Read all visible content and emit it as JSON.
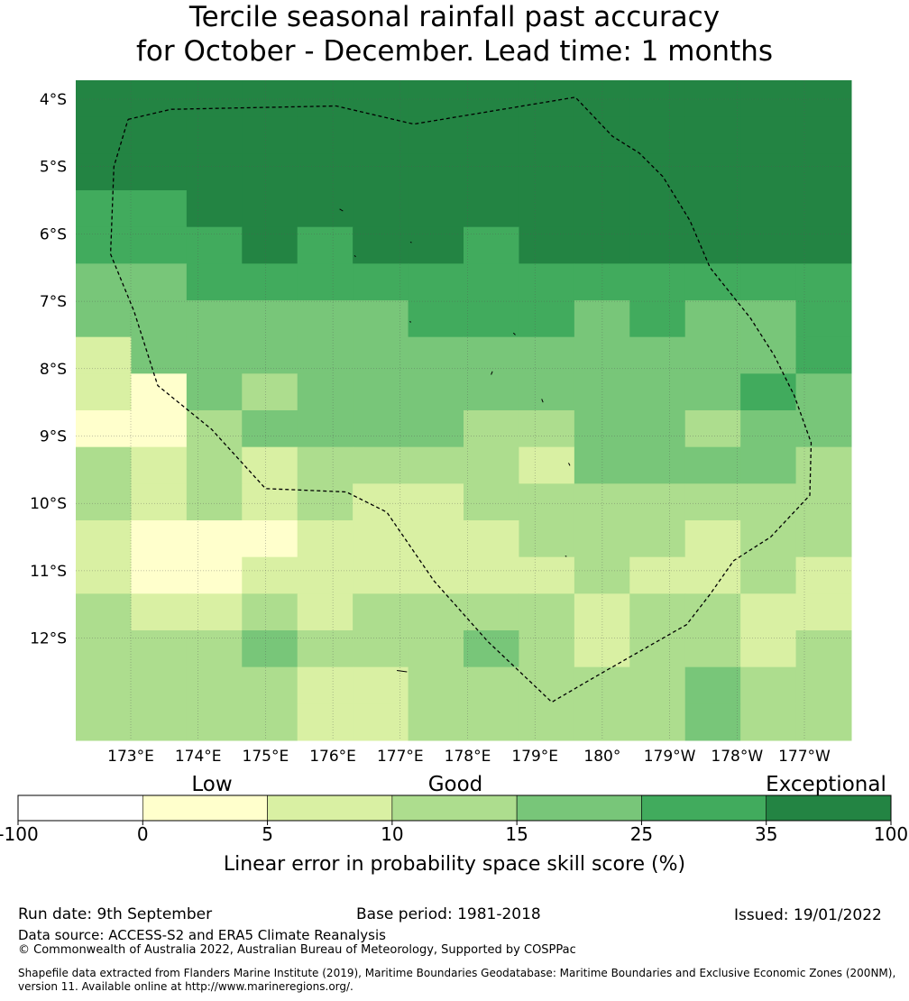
{
  "title": {
    "line1": "Tercile seasonal rainfall past accuracy",
    "line2": "for October - December. Lead time: 1 months"
  },
  "map": {
    "lat_labels": [
      "4°S",
      "5°S",
      "6°S",
      "7°S",
      "8°S",
      "9°S",
      "10°S",
      "11°S",
      "12°S"
    ],
    "lon_labels": [
      "173°E",
      "174°E",
      "175°E",
      "176°E",
      "177°E",
      "178°E",
      "179°E",
      "180°",
      "179°W",
      "178°W",
      "177°W"
    ],
    "grid": [
      [
        6,
        6,
        6,
        6,
        6,
        6,
        6,
        6,
        6,
        6,
        6,
        6,
        6,
        6
      ],
      [
        6,
        6,
        6,
        6,
        6,
        6,
        6,
        6,
        6,
        6,
        6,
        6,
        6,
        6
      ],
      [
        6,
        6,
        6,
        6,
        6,
        6,
        6,
        6,
        6,
        6,
        6,
        6,
        6,
        6
      ],
      [
        5,
        5,
        6,
        6,
        6,
        6,
        6,
        6,
        6,
        6,
        6,
        6,
        6,
        6
      ],
      [
        5,
        5,
        5,
        6,
        5,
        6,
        6,
        5,
        6,
        6,
        6,
        6,
        6,
        6
      ],
      [
        4,
        4,
        5,
        5,
        5,
        5,
        5,
        5,
        5,
        5,
        5,
        5,
        5,
        5
      ],
      [
        4,
        4,
        4,
        4,
        4,
        4,
        5,
        5,
        5,
        4,
        5,
        4,
        4,
        5
      ],
      [
        2,
        4,
        4,
        4,
        4,
        4,
        4,
        4,
        4,
        4,
        4,
        4,
        4,
        5
      ],
      [
        2,
        1,
        4,
        3,
        4,
        4,
        4,
        4,
        4,
        4,
        4,
        4,
        5,
        4
      ],
      [
        1,
        1,
        3,
        4,
        4,
        4,
        4,
        3,
        3,
        4,
        4,
        3,
        4,
        4
      ],
      [
        3,
        2,
        3,
        2,
        3,
        3,
        3,
        3,
        2,
        4,
        4,
        4,
        4,
        3
      ],
      [
        3,
        2,
        3,
        2,
        3,
        2,
        2,
        3,
        3,
        3,
        3,
        3,
        3,
        3
      ],
      [
        2,
        0,
        0,
        0,
        2,
        2,
        2,
        2,
        3,
        3,
        3,
        2,
        3,
        3
      ],
      [
        2,
        0,
        0,
        2,
        2,
        2,
        2,
        2,
        2,
        3,
        2,
        2,
        3,
        2
      ],
      [
        3,
        2,
        2,
        3,
        2,
        3,
        3,
        3,
        3,
        2,
        3,
        3,
        2,
        2
      ],
      [
        3,
        3,
        3,
        4,
        3,
        3,
        3,
        4,
        3,
        2,
        3,
        3,
        2,
        3
      ],
      [
        3,
        3,
        3,
        3,
        2,
        2,
        3,
        3,
        3,
        3,
        3,
        4,
        3,
        3
      ],
      [
        3,
        3,
        3,
        3,
        2,
        2,
        3,
        3,
        3,
        3,
        3,
        4,
        3,
        3
      ]
    ],
    "colors": [
      "#ffffcc",
      "#ffffcc",
      "#d9f0a3",
      "#addd8e",
      "#78c679",
      "#41ab5d",
      "#238443"
    ],
    "boundary": [
      [
        172.96,
        -4.3
      ],
      [
        173.6,
        -4.15
      ],
      [
        176.05,
        -4.1
      ],
      [
        177.2,
        -4.37
      ],
      [
        179.6,
        -3.97
      ],
      [
        180.15,
        -4.55
      ],
      [
        180.55,
        -4.8
      ],
      [
        180.9,
        -5.15
      ],
      [
        181.3,
        -5.8
      ],
      [
        181.6,
        -6.5
      ],
      [
        182.2,
        -7.25
      ],
      [
        182.55,
        -7.8
      ],
      [
        182.85,
        -8.4
      ],
      [
        183.1,
        -9.1
      ],
      [
        183.08,
        -9.88
      ],
      [
        182.5,
        -10.5
      ],
      [
        181.95,
        -10.85
      ],
      [
        181.6,
        -11.35
      ],
      [
        181.25,
        -11.8
      ],
      [
        179.85,
        -12.6
      ],
      [
        179.25,
        -12.95
      ],
      [
        178.3,
        -12.05
      ],
      [
        177.5,
        -11.15
      ],
      [
        176.8,
        -10.13
      ],
      [
        176.2,
        -9.83
      ],
      [
        175,
        -9.78
      ],
      [
        174.2,
        -8.9
      ],
      [
        173.4,
        -8.25
      ],
      [
        173.05,
        -7.15
      ],
      [
        172.7,
        -6.3
      ],
      [
        172.75,
        -5.0
      ],
      [
        172.96,
        -4.3
      ]
    ],
    "islands": [
      [
        [
          176.1,
          -5.63
        ],
        [
          176.15,
          -5.66
        ]
      ],
      [
        [
          176.32,
          -6.32
        ],
        [
          176.34,
          -6.34
        ]
      ],
      [
        [
          177.15,
          -6.12
        ],
        [
          177.17,
          -6.13
        ]
      ],
      [
        [
          177.14,
          -7.3
        ],
        [
          177.16,
          -7.31
        ]
      ],
      [
        [
          178.68,
          -7.47
        ],
        [
          178.71,
          -7.5
        ]
      ],
      [
        [
          178.37,
          -8.04
        ],
        [
          178.35,
          -8.09
        ]
      ],
      [
        [
          179.1,
          -8.45
        ],
        [
          179.12,
          -8.5
        ]
      ],
      [
        [
          179.5,
          -9.4
        ],
        [
          179.52,
          -9.44
        ]
      ],
      [
        [
          179.45,
          -10.78
        ],
        [
          179.47,
          -10.79
        ]
      ],
      [
        [
          176.95,
          -12.48
        ],
        [
          177.1,
          -12.5
        ]
      ]
    ]
  },
  "colorbar": {
    "ticks": [
      "-100",
      "0",
      "5",
      "10",
      "15",
      "25",
      "35",
      "100"
    ],
    "colors": [
      "#ffffff",
      "#ffffcc",
      "#d9f0a3",
      "#addd8e",
      "#78c679",
      "#41ab5d",
      "#238443"
    ],
    "category_labels": [
      "Low",
      "Good",
      "Exceptional"
    ],
    "label": "Linear error in probability space skill score (%)"
  },
  "footer": {
    "run_date": "Run date: 9th September",
    "base_period": "Base period: 1981-2018",
    "issued": "Issued: 19/01/2022",
    "data_source": "Data source: ACCESS-S2 and ERA5 Climate Reanalysis",
    "copyright": "© Commonwealth of Australia 2022, Australian Bureau of Meteorology, Supported by COSPPac",
    "shapefile": "Shapefile data extracted from Flanders Marine Institute (2019), Maritime Boundaries Geodatabase: Maritime Boundaries and Exclusive Economic Zones (200NM), version 11. Available online at http://www.marineregions.org/."
  }
}
